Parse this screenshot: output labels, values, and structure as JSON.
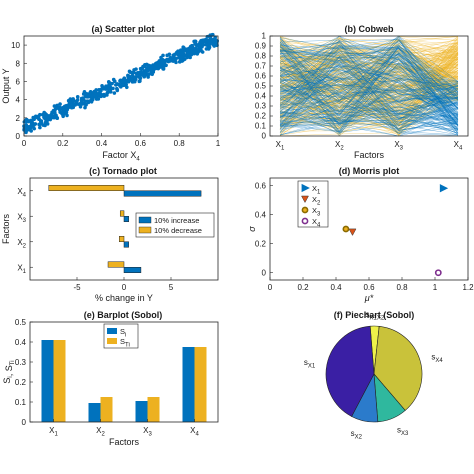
{
  "colors": {
    "blue": "#0072BD",
    "orange": "#EDB120",
    "red": "#D95319",
    "purple": "#7E2F8E",
    "green": "#77AC30",
    "cyan": "#4DBEEE",
    "axis": "#262626"
  },
  "chart_data": [
    {
      "id": "scatter",
      "type": "scatter",
      "title": "(a) Scatter plot",
      "xlabel": "Factor X4",
      "ylabel": "Output Y",
      "xlim": [
        0,
        1
      ],
      "ylim": [
        0,
        11
      ],
      "xticks": [
        "0",
        "0.2",
        "0.4",
        "0.6",
        "0.8",
        "1"
      ],
      "yticks": [
        "0",
        "2",
        "4",
        "6",
        "8",
        "10"
      ],
      "trend": {
        "slope": 9.9,
        "intercept": 0.9,
        "spread": 0.9,
        "n_points": 600
      },
      "color": "blue"
    },
    {
      "id": "cobweb",
      "type": "line",
      "title": "(b) Cobweb",
      "xlabel": "Factors",
      "ylim": [
        0,
        1
      ],
      "categories": [
        "X1",
        "X2",
        "X3",
        "X4"
      ],
      "yticks": [
        "0",
        "0.1",
        "0.2",
        "0.3",
        "0.4",
        "0.5",
        "0.6",
        "0.7",
        "0.8",
        "0.9",
        "1"
      ],
      "series": [
        {
          "color": "blue",
          "description_values": "lower-range output lines"
        },
        {
          "color": "orange",
          "description_values": "upper-range output lines"
        }
      ]
    },
    {
      "id": "tornado",
      "type": "bar",
      "orientation": "horizontal",
      "title": "(c) Tornado plot",
      "xlabel": "% change in Y",
      "ylabel": "Factors",
      "categories": [
        "X4",
        "X3",
        "X2",
        "X1"
      ],
      "xlim": [
        -10,
        10
      ],
      "xticks": [
        "-5",
        "0",
        "5"
      ],
      "series": [
        {
          "name": "10% increase",
          "color": "blue",
          "values": [
            8.2,
            0.5,
            0.5,
            1.8
          ]
        },
        {
          "name": "10% decrease",
          "color": "orange",
          "values": [
            -8.0,
            -0.4,
            -0.5,
            -1.7
          ]
        }
      ],
      "legend": "right"
    },
    {
      "id": "morris",
      "type": "scatter",
      "title": "(d) Morris plot",
      "xlabel": "μ*",
      "ylabel": "σ",
      "xlim": [
        0,
        1.2
      ],
      "ylim": [
        -0.05,
        0.65
      ],
      "xticks": [
        "0",
        "0.2",
        "0.4",
        "0.6",
        "0.8",
        "1",
        "1.2"
      ],
      "yticks": [
        "0",
        "0.2",
        "0.4",
        "0.6"
      ],
      "points": [
        {
          "name": "X1",
          "x": 1.05,
          "y": 0.58,
          "marker": "tri-right",
          "color": "blue"
        },
        {
          "name": "X2",
          "x": 0.5,
          "y": 0.28,
          "marker": "tri-down",
          "color": "red"
        },
        {
          "name": "X3",
          "x": 0.46,
          "y": 0.3,
          "marker": "circle",
          "color": "orange"
        },
        {
          "name": "X4",
          "x": 1.02,
          "y": 0.0,
          "marker": "circle",
          "color": "purple"
        }
      ],
      "legend": "top-left"
    },
    {
      "id": "barplot",
      "type": "bar",
      "title": "(e) Barplot (Sobol)",
      "xlabel": "Factors",
      "ylabel": "Si, STi",
      "categories": [
        "X1",
        "X2",
        "X3",
        "X4"
      ],
      "ylim": [
        0,
        0.5
      ],
      "yticks": [
        "0",
        "0.1",
        "0.2",
        "0.3",
        "0.4",
        "0.5"
      ],
      "series": [
        {
          "name": "Si",
          "color": "blue",
          "values": [
            0.41,
            0.095,
            0.105,
            0.375
          ]
        },
        {
          "name": "STi",
          "color": "orange",
          "values": [
            0.41,
            0.125,
            0.125,
            0.375
          ]
        }
      ],
      "legend": "top-center"
    },
    {
      "id": "piechart",
      "type": "pie",
      "title": "(f) Piechart (Sobol)",
      "slices": [
        {
          "label": "X1X2",
          "value": 0.03,
          "color": "#EEF04A"
        },
        {
          "label": "X4",
          "value": 0.37,
          "color": "#C9C23A"
        },
        {
          "label": "X3",
          "value": 0.1,
          "color": "#2FB89E"
        },
        {
          "label": "X2",
          "value": 0.09,
          "color": "#2B7BCB"
        },
        {
          "label": "X1",
          "value": 0.41,
          "color": "#3A1FA4"
        }
      ]
    }
  ]
}
